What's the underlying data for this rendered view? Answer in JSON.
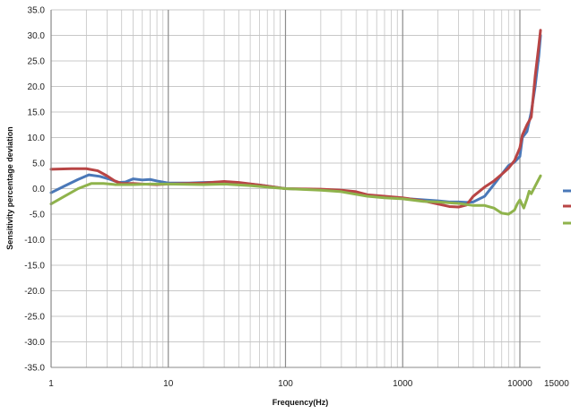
{
  "chart_data": {
    "type": "line",
    "title": "",
    "xlabel": "Frequency(Hz)",
    "ylabel": "Sensitivity percentage deviation",
    "x_scale": "log",
    "xlim": [
      1,
      15000
    ],
    "ylim": [
      -35,
      35
    ],
    "y_tick_step": 5,
    "x_tick_labels": [
      "1",
      "10",
      "100",
      "1000",
      "10000",
      "15000"
    ],
    "y_tick_labels": [
      "35.0",
      "30.0",
      "25.0",
      "20.0",
      "15.0",
      "10.0",
      "5.0",
      "0.0",
      "-5.0",
      "-10.0",
      "-15.0",
      "-20.0",
      "-25.0",
      "-30.0",
      "-35.0"
    ],
    "grid": "horizontal major + logarithmic vertical",
    "legend": "right, entries truncated",
    "series": [
      {
        "color": "#4a78b8",
        "points": [
          [
            1,
            -0.8
          ],
          [
            1.3,
            0.5
          ],
          [
            1.7,
            1.8
          ],
          [
            2.1,
            2.7
          ],
          [
            2.6,
            2.4
          ],
          [
            3.2,
            1.8
          ],
          [
            3.8,
            1.2
          ],
          [
            4.3,
            1.3
          ],
          [
            5,
            1.9
          ],
          [
            6,
            1.7
          ],
          [
            7,
            1.8
          ],
          [
            8,
            1.5
          ],
          [
            10,
            1.1
          ],
          [
            15,
            1.1
          ],
          [
            20,
            1.2
          ],
          [
            30,
            1.3
          ],
          [
            40,
            1.1
          ],
          [
            60,
            0.7
          ],
          [
            100,
            0.0
          ],
          [
            200,
            -0.2
          ],
          [
            300,
            -0.4
          ],
          [
            400,
            -0.8
          ],
          [
            500,
            -1.4
          ],
          [
            700,
            -1.6
          ],
          [
            1000,
            -1.9
          ],
          [
            1500,
            -2.2
          ],
          [
            2000,
            -2.4
          ],
          [
            2500,
            -2.6
          ],
          [
            3000,
            -2.6
          ],
          [
            3500,
            -2.7
          ],
          [
            4000,
            -2.6
          ],
          [
            5000,
            -1.5
          ],
          [
            6000,
            0.8
          ],
          [
            7000,
            2.8
          ],
          [
            8000,
            4.5
          ],
          [
            9000,
            5.2
          ],
          [
            10000,
            6.3
          ],
          [
            10500,
            10.0
          ],
          [
            11500,
            11.2
          ],
          [
            12500,
            15.0
          ],
          [
            13500,
            20.0
          ],
          [
            14500,
            26.0
          ],
          [
            15000,
            30.0
          ]
        ]
      },
      {
        "color": "#b84545",
        "points": [
          [
            1,
            3.8
          ],
          [
            1.5,
            3.9
          ],
          [
            2,
            3.9
          ],
          [
            2.5,
            3.5
          ],
          [
            3,
            2.5
          ],
          [
            3.5,
            1.5
          ],
          [
            4,
            1.0
          ],
          [
            5,
            1.0
          ],
          [
            6,
            0.9
          ],
          [
            8,
            0.8
          ],
          [
            10,
            0.9
          ],
          [
            15,
            1.0
          ],
          [
            20,
            1.1
          ],
          [
            30,
            1.4
          ],
          [
            40,
            1.2
          ],
          [
            60,
            0.7
          ],
          [
            100,
            0.0
          ],
          [
            200,
            -0.1
          ],
          [
            300,
            -0.3
          ],
          [
            400,
            -0.6
          ],
          [
            500,
            -1.2
          ],
          [
            700,
            -1.5
          ],
          [
            1000,
            -1.8
          ],
          [
            1500,
            -2.4
          ],
          [
            2000,
            -3.0
          ],
          [
            2500,
            -3.5
          ],
          [
            3000,
            -3.6
          ],
          [
            3500,
            -3.2
          ],
          [
            4000,
            -1.5
          ],
          [
            5000,
            0.3
          ],
          [
            6000,
            1.5
          ],
          [
            7000,
            2.8
          ],
          [
            8000,
            4.0
          ],
          [
            9000,
            5.5
          ],
          [
            10000,
            8.0
          ],
          [
            10500,
            10.5
          ],
          [
            11500,
            12.5
          ],
          [
            12500,
            14.0
          ],
          [
            13500,
            22.0
          ],
          [
            14500,
            28.0
          ],
          [
            15000,
            31.0
          ]
        ]
      },
      {
        "color": "#8fb34c",
        "points": [
          [
            1,
            -3.0
          ],
          [
            1.3,
            -1.5
          ],
          [
            1.7,
            0.0
          ],
          [
            2.2,
            1.0
          ],
          [
            2.8,
            1.0
          ],
          [
            3.5,
            0.8
          ],
          [
            5,
            0.8
          ],
          [
            7,
            0.9
          ],
          [
            10,
            0.9
          ],
          [
            20,
            0.8
          ],
          [
            30,
            0.9
          ],
          [
            50,
            0.6
          ],
          [
            100,
            0.0
          ],
          [
            200,
            -0.3
          ],
          [
            300,
            -0.6
          ],
          [
            500,
            -1.5
          ],
          [
            700,
            -1.8
          ],
          [
            1000,
            -2.0
          ],
          [
            1500,
            -2.5
          ],
          [
            2000,
            -2.6
          ],
          [
            3000,
            -2.9
          ],
          [
            4000,
            -3.3
          ],
          [
            5000,
            -3.3
          ],
          [
            6000,
            -3.8
          ],
          [
            7000,
            -4.8
          ],
          [
            8000,
            -5.0
          ],
          [
            9000,
            -4.2
          ],
          [
            9500,
            -3.0
          ],
          [
            10000,
            -2.2
          ],
          [
            10800,
            -3.8
          ],
          [
            11500,
            -2.0
          ],
          [
            12000,
            -0.5
          ],
          [
            12500,
            -1.0
          ],
          [
            13500,
            0.5
          ],
          [
            15000,
            2.5
          ]
        ]
      }
    ]
  }
}
